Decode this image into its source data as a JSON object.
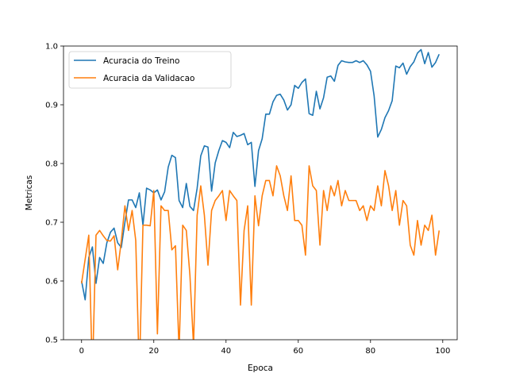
{
  "chart_data": {
    "type": "line",
    "title": "",
    "xlabel": "Epoca",
    "ylabel": "Metricas",
    "xlim": [
      -5,
      104
    ],
    "ylim": [
      0.5,
      1.0
    ],
    "xticks": [
      0,
      20,
      40,
      60,
      80,
      100
    ],
    "xtick_labels": [
      "0",
      "20",
      "40",
      "60",
      "80",
      "100"
    ],
    "yticks": [
      0.5,
      0.6,
      0.7,
      0.8,
      0.9,
      1.0
    ],
    "ytick_labels": [
      "0.5",
      "0.6",
      "0.7",
      "0.8",
      "0.9",
      "1.0"
    ],
    "grid": false,
    "legend_position": "top-left",
    "x": [
      0,
      1,
      2,
      3,
      4,
      5,
      6,
      7,
      8,
      9,
      10,
      11,
      12,
      13,
      14,
      15,
      16,
      17,
      18,
      19,
      20,
      21,
      22,
      23,
      24,
      25,
      26,
      27,
      28,
      29,
      30,
      31,
      32,
      33,
      34,
      35,
      36,
      37,
      38,
      39,
      40,
      41,
      42,
      43,
      44,
      45,
      46,
      47,
      48,
      49,
      50,
      51,
      52,
      53,
      54,
      55,
      56,
      57,
      58,
      59,
      60,
      61,
      62,
      63,
      64,
      65,
      66,
      67,
      68,
      69,
      70,
      71,
      72,
      73,
      74,
      75,
      76,
      77,
      78,
      79,
      80,
      81,
      82,
      83,
      84,
      85,
      86,
      87,
      88,
      89,
      90,
      91,
      92,
      93,
      94,
      95,
      96,
      97,
      98,
      99
    ],
    "series": [
      {
        "name": "Acuracia do Treino",
        "color": "#1f77b4",
        "values": [
          0.6,
          0.568,
          0.64,
          0.658,
          0.596,
          0.64,
          0.63,
          0.665,
          0.683,
          0.69,
          0.665,
          0.657,
          0.7,
          0.738,
          0.738,
          0.725,
          0.75,
          0.695,
          0.758,
          0.755,
          0.75,
          0.755,
          0.738,
          0.752,
          0.794,
          0.814,
          0.81,
          0.737,
          0.725,
          0.766,
          0.727,
          0.72,
          0.758,
          0.813,
          0.83,
          0.828,
          0.753,
          0.801,
          0.822,
          0.839,
          0.836,
          0.827,
          0.853,
          0.846,
          0.848,
          0.851,
          0.832,
          0.836,
          0.761,
          0.822,
          0.842,
          0.884,
          0.884,
          0.905,
          0.916,
          0.918,
          0.908,
          0.891,
          0.9,
          0.933,
          0.928,
          0.938,
          0.944,
          0.885,
          0.882,
          0.923,
          0.893,
          0.912,
          0.947,
          0.949,
          0.94,
          0.967,
          0.975,
          0.973,
          0.972,
          0.972,
          0.975,
          0.972,
          0.975,
          0.968,
          0.957,
          0.915,
          0.845,
          0.858,
          0.878,
          0.89,
          0.907,
          0.966,
          0.963,
          0.971,
          0.952,
          0.965,
          0.973,
          0.988,
          0.994,
          0.97,
          0.989,
          0.964,
          0.972,
          0.986
        ]
      },
      {
        "name": "Acuracia da Validacao",
        "color": "#ff7f0e",
        "values": [
          0.596,
          0.637,
          0.678,
          0.44,
          0.678,
          0.686,
          0.677,
          0.669,
          0.668,
          0.677,
          0.619,
          0.668,
          0.728,
          0.686,
          0.72,
          0.669,
          0.44,
          0.695,
          0.695,
          0.694,
          0.754,
          0.51,
          0.728,
          0.72,
          0.72,
          0.653,
          0.66,
          0.48,
          0.695,
          0.686,
          0.61,
          0.49,
          0.712,
          0.762,
          0.712,
          0.627,
          0.72,
          0.737,
          0.745,
          0.754,
          0.703,
          0.754,
          0.745,
          0.737,
          0.559,
          0.686,
          0.728,
          0.559,
          0.745,
          0.694,
          0.745,
          0.771,
          0.771,
          0.745,
          0.796,
          0.779,
          0.745,
          0.72,
          0.779,
          0.703,
          0.703,
          0.695,
          0.644,
          0.796,
          0.762,
          0.754,
          0.661,
          0.754,
          0.72,
          0.762,
          0.745,
          0.771,
          0.728,
          0.754,
          0.737,
          0.737,
          0.737,
          0.72,
          0.728,
          0.703,
          0.728,
          0.72,
          0.762,
          0.728,
          0.788,
          0.762,
          0.72,
          0.754,
          0.695,
          0.737,
          0.728,
          0.661,
          0.644,
          0.703,
          0.661,
          0.695,
          0.686,
          0.712,
          0.644,
          0.686
        ]
      }
    ]
  }
}
